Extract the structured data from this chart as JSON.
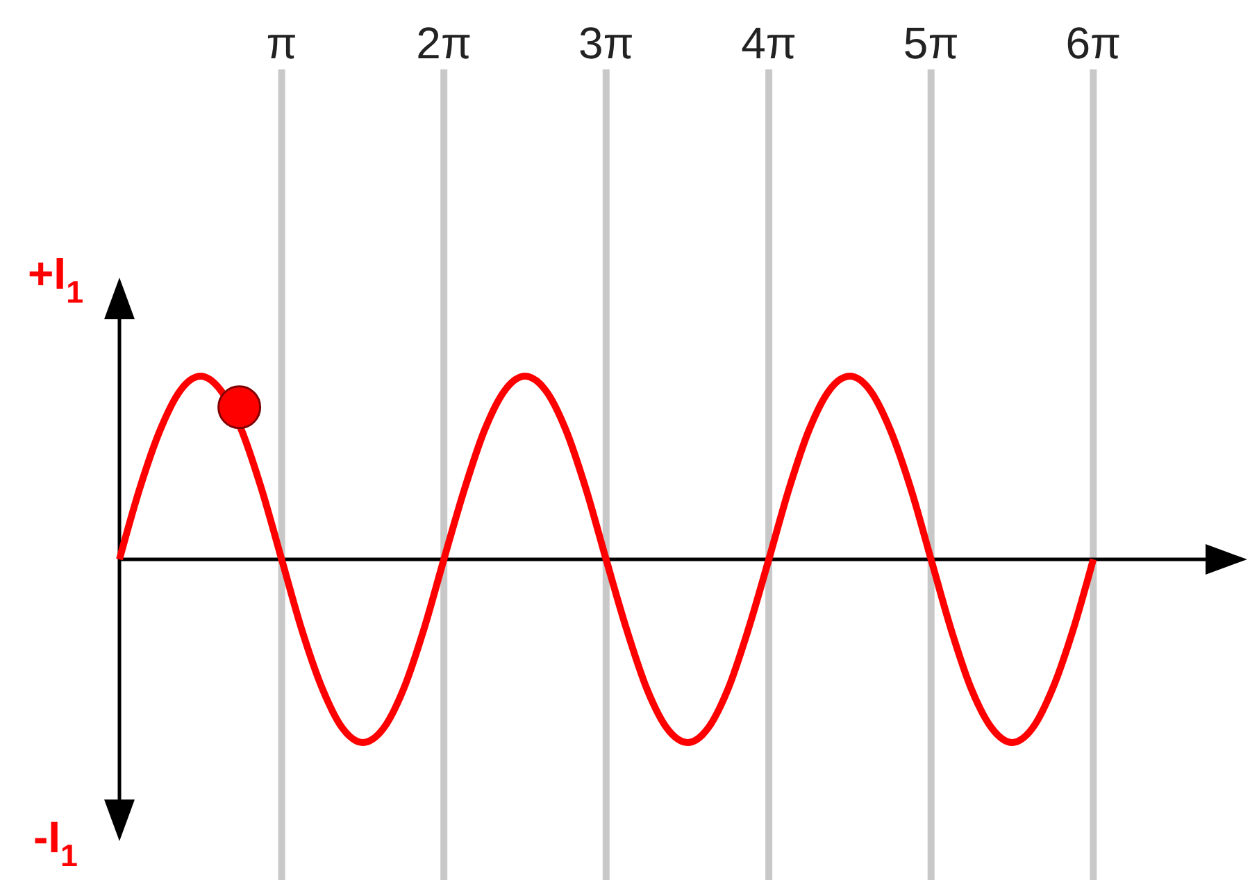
{
  "chart_data": {
    "type": "line",
    "x": [
      0,
      0.39,
      0.79,
      1.18,
      1.57,
      1.96,
      2.36,
      2.75,
      3.14,
      3.53,
      3.93,
      4.32,
      4.71,
      5.11,
      5.5,
      5.89,
      6.28,
      6.68,
      7.07,
      7.46,
      7.85,
      8.25,
      8.64,
      9.03,
      9.42,
      9.82,
      10.21,
      10.6,
      11,
      11.39,
      11.78,
      12.17,
      12.57,
      12.96,
      13.35,
      13.74,
      14.14,
      14.53,
      14.92,
      15.32,
      15.71,
      16.1,
      16.49,
      16.89,
      17.28,
      17.67,
      18.06,
      18.46,
      18.85
    ],
    "series": [
      {
        "color": "#ff0000",
        "marker": "none",
        "values": [
          0,
          0.25,
          0.46,
          0.6,
          0.65,
          0.6,
          0.46,
          0.25,
          0,
          -0.25,
          -0.46,
          -0.6,
          -0.65,
          -0.6,
          -0.46,
          -0.25,
          0,
          0.25,
          0.46,
          0.6,
          0.65,
          0.6,
          0.46,
          0.25,
          0,
          -0.25,
          -0.46,
          -0.6,
          -0.65,
          -0.6,
          -0.46,
          -0.25,
          0,
          0.25,
          0.46,
          0.6,
          0.65,
          0.6,
          0.46,
          0.25,
          0,
          -0.25,
          -0.46,
          -0.6,
          -0.65,
          -0.6,
          -0.46,
          -0.25,
          0
        ]
      },
      {
        "type": "scatter",
        "color": "#ff0000",
        "marker": "circle",
        "x": [
          2.32
        ],
        "values": [
          0.54
        ]
      }
    ],
    "xlim": [
      0,
      21.83
    ],
    "ylim": [
      -1,
      1
    ],
    "xticks": [
      {
        "value": 3.14,
        "label": "π"
      },
      {
        "value": 6.28,
        "label": "2π"
      },
      {
        "value": 9.42,
        "label": "3π"
      },
      {
        "value": 12.57,
        "label": "4π"
      },
      {
        "value": 15.71,
        "label": "5π"
      },
      {
        "value": 18.85,
        "label": "6π"
      }
    ],
    "yticks": [
      {
        "value": 1,
        "label": "+I$_{1}$"
      },
      {
        "value": -1,
        "label": "-I$_{1}$"
      }
    ],
    "ref_lines": [
      {
        "axis": "y",
        "value": 0,
        "color": "#000000"
      }
    ],
    "grid": "x"
  }
}
